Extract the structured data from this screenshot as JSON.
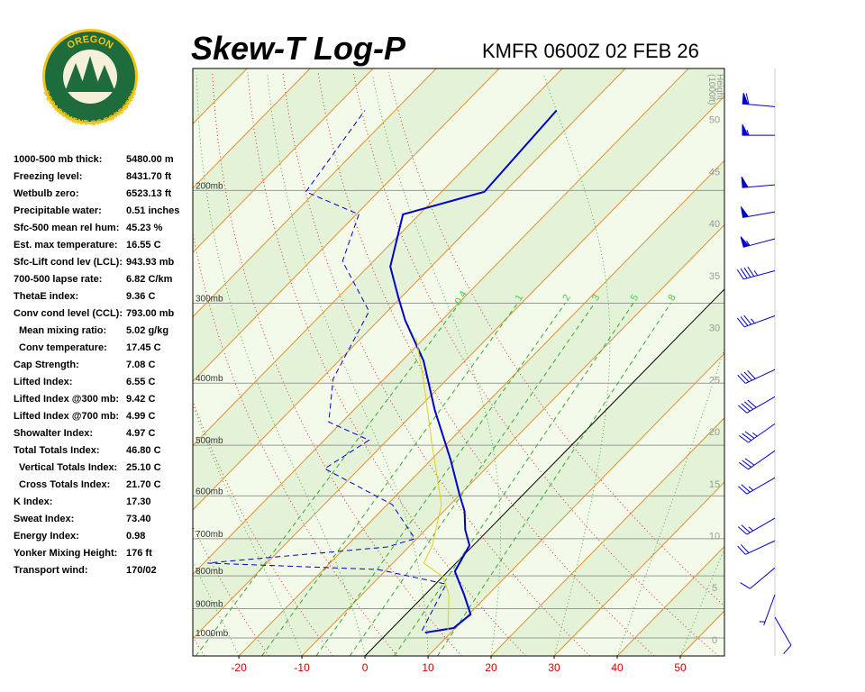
{
  "logo": {
    "top": "OREGON",
    "bottom": "DEPARTMENT OF FORESTRY"
  },
  "stats": [
    [
      "1000-500 mb thick:",
      "5480.00 m"
    ],
    [
      "Freezing level:",
      "8431.70 ft"
    ],
    [
      "Wetbulb zero:",
      "6523.13 ft"
    ],
    [
      "Precipitable water:",
      "0.51 inches"
    ],
    [
      "Sfc-500 mean rel hum:",
      "45.23 %"
    ],
    [
      "Est. max temperature:",
      "16.55 C"
    ],
    [
      "Sfc-Lift cond lev (LCL):",
      "943.93 mb"
    ],
    [
      "700-500 lapse rate:",
      "6.82 C/km"
    ],
    [
      "ThetaE index:",
      "9.36 C"
    ],
    [
      "Conv cond level (CCL):",
      "793.00 mb"
    ],
    [
      "Mean mixing ratio:",
      "5.02 g/kg"
    ],
    [
      "Conv temperature:",
      "17.45 C"
    ],
    [
      "Cap Strength:",
      "7.08 C"
    ],
    [
      "Lifted Index:",
      "6.55 C"
    ],
    [
      "Lifted Index @300 mb:",
      "9.42 C"
    ],
    [
      "Lifted Index @700 mb:",
      "4.99 C"
    ],
    [
      "Showalter Index:",
      "4.97 C"
    ],
    [
      "Total Totals Index:",
      "46.80 C"
    ],
    [
      "Vertical Totals Index:",
      "25.10 C"
    ],
    [
      "Cross Totals Index:",
      "21.70 C"
    ],
    [
      "K Index:",
      "17.30"
    ],
    [
      "Sweat Index:",
      "73.40"
    ],
    [
      "Energy Index:",
      "0.98"
    ],
    [
      "Yonker Mixing Height:",
      "176 ft"
    ],
    [
      "Transport wind:",
      "170/02"
    ]
  ],
  "chart_data": {
    "type": "skewt",
    "title": "Skew-T Log-P",
    "subtitle": "KMFR 0600Z 02 FEB 26",
    "xlim": [
      -27.3,
      57
    ],
    "xticks": [
      -20,
      -10,
      0,
      10,
      20,
      30,
      40,
      50
    ],
    "ylim": [
      1067,
      129
    ],
    "ylog": true,
    "yticks": [
      {
        "value": 1000,
        "label": "1000mb"
      },
      {
        "value": 900,
        "label": "900mb"
      },
      {
        "value": 800,
        "label": "800mb"
      },
      {
        "value": 700,
        "label": "700mb"
      },
      {
        "value": 600,
        "label": "600mb"
      },
      {
        "value": 500,
        "label": "500mb"
      },
      {
        "value": 400,
        "label": "400mb"
      },
      {
        "value": 300,
        "label": "300mb"
      },
      {
        "value": 200,
        "label": "200mb"
      }
    ],
    "y2lim": [
      -1.56,
      54.9
    ],
    "y2ticks": [
      0,
      5,
      10,
      15,
      20,
      25,
      30,
      35,
      40,
      45,
      50
    ],
    "y2label": [
      "Height",
      "(1000ft)"
    ],
    "mixing_ratios": [
      0.4,
      1,
      2,
      3,
      5,
      8
    ],
    "series": [
      {
        "color": "#0000cc",
        "style": "solid",
        "width": 2,
        "pressure": [
          981,
          965,
          919,
          856,
          787,
          717,
          678,
          634,
          596,
          527,
          441,
          369,
          319,
          294,
          263,
          218,
          201,
          150
        ],
        "values": [
          5.9,
          9.7,
          10.3,
          6.2,
          1.1,
          -0.6,
          -3.7,
          -6.7,
          -10.2,
          -16.9,
          -27.1,
          -36.6,
          -45.8,
          -50.4,
          -56.5,
          -62.6,
          -53.2,
          -54.4
        ]
      },
      {
        "color": "#0000cc",
        "style": "dashed",
        "width": 1,
        "pressure": [
          974,
          824,
          782,
          764,
          721,
          700,
          619,
          544,
          491,
          460,
          394,
          309,
          258,
          218,
          201,
          150
        ],
        "values": [
          5.1,
          1.7,
          -11.3,
          -39.4,
          -13.4,
          -10.3,
          -19.2,
          -35.5,
          -32.9,
          -42.1,
          -48.1,
          -52.9,
          -64.9,
          -69.6,
          -81.5,
          -84.8
        ]
      },
      {
        "color": "#e0d020",
        "style": "solid",
        "width": 1,
        "pressure": [
          974,
          856,
          803,
          764,
          717,
          619,
          502,
          394,
          340
        ],
        "values": [
          9.2,
          3.8,
          0.1,
          -5.1,
          -6.5,
          -11.4,
          -21.9,
          -33.8,
          -41.3
        ]
      }
    ],
    "winds": {
      "color": "#0000cc",
      "pressure": [
        148,
        164,
        196,
        216,
        238,
        267,
        314,
        381,
        420,
        463,
        510,
        562,
        650,
        705,
        777,
        856,
        928
      ],
      "direction": [
        275,
        270,
        265,
        260,
        255,
        255,
        250,
        245,
        240,
        235,
        235,
        240,
        240,
        245,
        230,
        200,
        150
      ],
      "speed": [
        60,
        55,
        50,
        50,
        55,
        45,
        35,
        40,
        40,
        35,
        30,
        25,
        25,
        20,
        10,
        5,
        10
      ]
    }
  }
}
